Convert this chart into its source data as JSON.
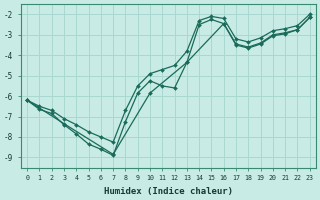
{
  "xlabel": "Humidex (Indice chaleur)",
  "xlim_min": -0.5,
  "xlim_max": 23.5,
  "ylim_min": -9.5,
  "ylim_max": -1.5,
  "yticks": [
    -9,
    -8,
    -7,
    -6,
    -5,
    -4,
    -3,
    -2
  ],
  "xticks": [
    0,
    1,
    2,
    3,
    4,
    5,
    6,
    7,
    8,
    9,
    10,
    11,
    12,
    13,
    14,
    15,
    16,
    17,
    18,
    19,
    20,
    21,
    22,
    23
  ],
  "background_color": "#c8ebe5",
  "grid_color": "#a8d8d0",
  "line_color": "#1a6b5a",
  "line1_x": [
    0,
    1,
    2,
    3,
    4,
    5,
    6,
    7,
    8,
    9,
    10,
    11,
    12,
    13,
    14,
    15,
    16,
    17,
    18,
    19,
    20,
    21,
    22,
    23
  ],
  "line1_y": [
    -6.2,
    -6.65,
    -6.85,
    -7.4,
    -7.85,
    -8.35,
    -8.6,
    -8.9,
    -7.25,
    -5.85,
    -5.25,
    -5.5,
    -5.6,
    -4.35,
    -2.5,
    -2.25,
    -2.45,
    -3.5,
    -3.65,
    -3.45,
    -3.05,
    -2.95,
    -2.75,
    -2.15
  ],
  "line2_x": [
    0,
    3,
    7,
    10,
    13,
    16,
    17,
    18,
    19,
    20,
    21,
    22,
    23
  ],
  "line2_y": [
    -6.2,
    -7.35,
    -8.85,
    -5.85,
    -4.35,
    -2.45,
    -3.45,
    -3.6,
    -3.4,
    -3.0,
    -2.9,
    -2.75,
    -2.15
  ],
  "line3_x": [
    0,
    1,
    2,
    3,
    4,
    5,
    6,
    7,
    8,
    9,
    10,
    11,
    12,
    13,
    14,
    15,
    16,
    17,
    18,
    19,
    20,
    21,
    22,
    23
  ],
  "line3_y": [
    -6.2,
    -6.5,
    -6.7,
    -7.1,
    -7.4,
    -7.75,
    -8.0,
    -8.25,
    -6.7,
    -5.5,
    -4.9,
    -4.7,
    -4.5,
    -3.8,
    -2.3,
    -2.1,
    -2.2,
    -3.2,
    -3.35,
    -3.15,
    -2.8,
    -2.7,
    -2.55,
    -2.0
  ]
}
